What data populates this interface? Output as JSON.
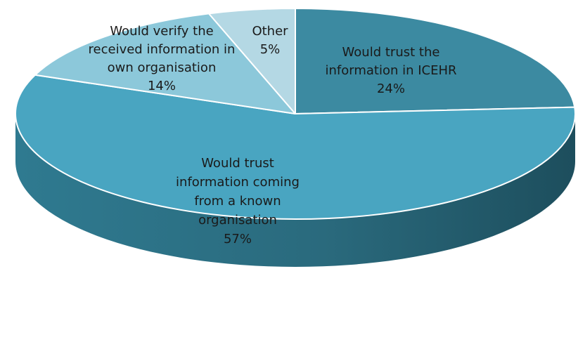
{
  "chart_data": {
    "type": "pie",
    "variant": "3d",
    "title": "",
    "legend": "none",
    "categories": [
      "Would trust the information in ICEHR",
      "Would trust information coming from a known organisation",
      "Would verify the received information in own organisation",
      "Other"
    ],
    "values": [
      24,
      57,
      14,
      5
    ],
    "colors": [
      "#3c8aa1",
      "#49a5c1",
      "#8cc8da",
      "#b4d8e4"
    ],
    "side_colors": [
      "#2a6274",
      "#2d6f83",
      "#5e9fb2",
      "#86b6c5"
    ],
    "labels": [
      {
        "lines": [
          "Would trust the",
          "information in  ICEHR",
          "24%"
        ]
      },
      {
        "lines": [
          "Would trust",
          "information coming",
          "from a known",
          "organisation",
          "57%"
        ]
      },
      {
        "lines": [
          "Would verify the",
          "received information in",
          "own organisation",
          "14%"
        ]
      },
      {
        "lines": [
          "Other",
          "5%"
        ]
      }
    ]
  }
}
